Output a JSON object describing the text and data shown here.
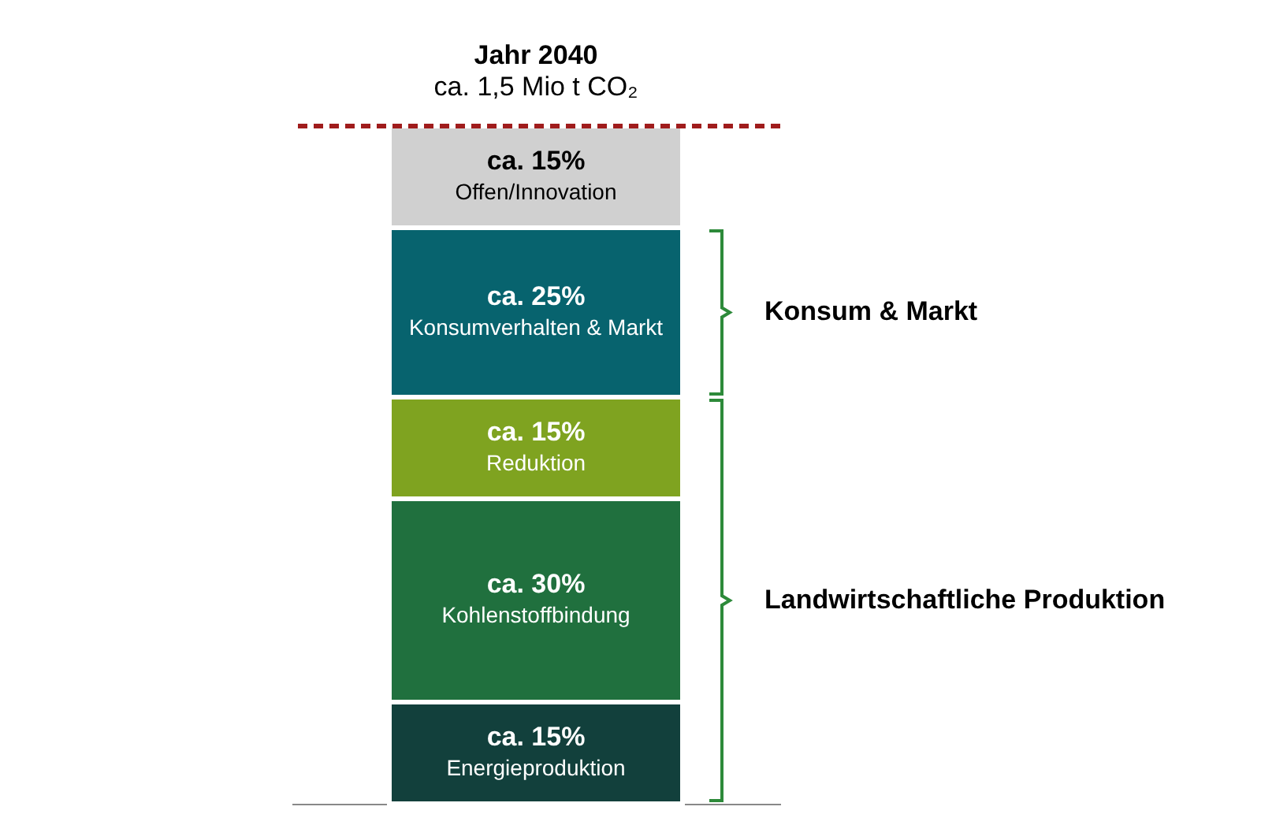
{
  "chart_data": {
    "type": "bar",
    "stacked": true,
    "title": "Jahr 2040",
    "subtitle": "ca. 1,5 Mio t CO₂",
    "categories": [
      null
    ],
    "ylim": [
      0,
      100
    ],
    "tick_labels": false,
    "series": [
      {
        "name": "Energieproduktion",
        "color": "#12403c",
        "values": [
          15
        ],
        "value_labels": [
          "ca. 15%"
        ]
      },
      {
        "name": "Kohlenstoffbindung",
        "color": "#20703e",
        "values": [
          30
        ],
        "value_labels": [
          "ca. 30%"
        ]
      },
      {
        "name": "Reduktion",
        "color": "#7fa320",
        "values": [
          15
        ],
        "value_labels": [
          "ca. 15%"
        ]
      },
      {
        "name": "Konsumverhalten & Markt",
        "color": "#07636e",
        "values": [
          25
        ],
        "value_labels": [
          "ca. 25%"
        ]
      },
      {
        "name": "Offen/Innovation",
        "color": "#d0d0d0",
        "values": [
          15
        ],
        "value_labels": [
          "ca. 15%"
        ]
      }
    ],
    "ref_lines": [
      {
        "axis": "y",
        "value": 100,
        "color": "#a01c1c",
        "line_style": "dashed"
      }
    ],
    "annotations": [
      "Konsum & Markt",
      "Landwirtschaftliche Produktion"
    ]
  }
}
